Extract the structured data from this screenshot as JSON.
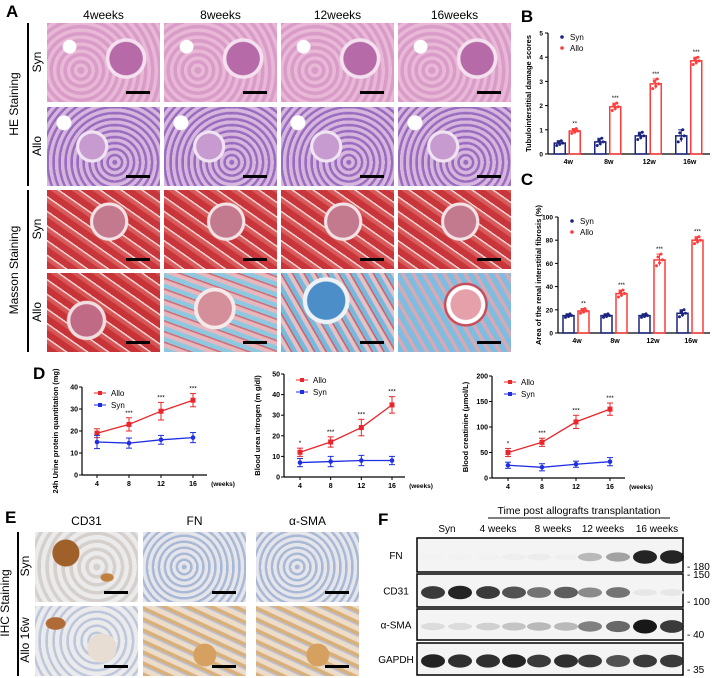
{
  "panelA": {
    "label": "A",
    "columns": [
      "4weeks",
      "8weeks",
      "12weeks",
      "16weeks"
    ],
    "groups": [
      {
        "label": "HE Staining",
        "rows": [
          "Syn",
          "Allo"
        ]
      },
      {
        "label": "Masson Staining",
        "rows": [
          "Syn",
          "Allo"
        ]
      }
    ]
  },
  "panelD_label": "D",
  "panelE": {
    "label": "E",
    "columns": [
      "CD31",
      "FN",
      "α-SMA"
    ],
    "group": "IHC Staining",
    "rows": [
      "Syn",
      "Allo 16w"
    ]
  },
  "panelF": {
    "label": "F",
    "title": "Time post allografts transplantation",
    "columns": [
      "Syn",
      "4 weeks",
      "8 weeks",
      "12 weeks",
      "16 weeks"
    ],
    "blots": [
      {
        "name": "FN",
        "marker": "- 180",
        "intensity": [
          0.05,
          0.05,
          0.05,
          0.07,
          0.08,
          0.06,
          0.3,
          0.4,
          0.95,
          0.95
        ]
      },
      {
        "name": "CD31",
        "marker": "- 100",
        "marker_top": "- 150",
        "intensity": [
          0.85,
          0.95,
          0.85,
          0.75,
          0.6,
          0.7,
          0.5,
          0.6,
          0.1,
          0.1
        ]
      },
      {
        "name": "α-SMA",
        "marker": "- 40",
        "intensity": [
          0.15,
          0.15,
          0.2,
          0.25,
          0.3,
          0.3,
          0.55,
          0.65,
          1.0,
          0.85
        ]
      },
      {
        "name": "GAPDH",
        "marker": "- 35",
        "intensity": [
          0.95,
          0.9,
          0.9,
          0.95,
          0.85,
          0.9,
          0.85,
          0.75,
          0.85,
          0.85
        ]
      }
    ]
  },
  "colors": {
    "syn": "#1a237e",
    "allo": "#ff3b3b",
    "syn_line": "#1f2ee0",
    "allo_line": "#e8262b"
  },
  "chart_data": [
    {
      "panel": "B",
      "type": "bar",
      "categories": [
        "4w",
        "8w",
        "12w",
        "16w"
      ],
      "ylabel": "Tubulointerstitial damage scores",
      "ylim": [
        0,
        5
      ],
      "yticks": [
        0,
        1,
        2,
        3,
        4,
        5
      ],
      "legend": "top-left",
      "series": [
        {
          "name": "Syn",
          "values": [
            0.45,
            0.5,
            0.75,
            0.75
          ],
          "err": [
            0.1,
            0.15,
            0.15,
            0.25
          ]
        },
        {
          "name": "Allo",
          "values": [
            0.95,
            1.95,
            2.9,
            3.85
          ],
          "err": [
            0.1,
            0.15,
            0.2,
            0.15
          ]
        }
      ],
      "significance": [
        "**",
        "***",
        "***",
        "***"
      ]
    },
    {
      "panel": "C",
      "type": "bar",
      "categories": [
        "4w",
        "8w",
        "12w",
        "16w"
      ],
      "ylabel": "Area of the renal interstitial fibrosis (%)",
      "ylim": [
        0,
        100
      ],
      "yticks": [
        0,
        20,
        40,
        60,
        80,
        100
      ],
      "legend": "top-left",
      "series": [
        {
          "name": "Syn",
          "values": [
            15,
            15,
            15,
            17
          ],
          "err": [
            1.5,
            1.5,
            1.5,
            3
          ]
        },
        {
          "name": "Allo",
          "values": [
            19,
            34,
            63,
            80
          ],
          "err": [
            2,
            3,
            5,
            3
          ]
        }
      ],
      "significance": [
        "**",
        "***",
        "***",
        "***"
      ]
    },
    {
      "panel": "D1",
      "type": "line",
      "x": [
        4,
        8,
        12,
        16
      ],
      "xlabel": "(weeks)",
      "ylabel": "24h Urine protein quantitation (mg)",
      "ylim": [
        0,
        40
      ],
      "yticks": [
        0,
        10,
        20,
        30,
        40
      ],
      "legend": "top-left",
      "series": [
        {
          "name": "Allo",
          "values": [
            19,
            23,
            29,
            34
          ],
          "err": [
            2,
            3,
            4,
            3
          ]
        },
        {
          "name": "Syn",
          "values": [
            15,
            14.5,
            16,
            17
          ],
          "err": [
            3,
            2.3,
            2,
            2.3
          ]
        }
      ],
      "significance": [
        "",
        "***",
        "***",
        "***"
      ]
    },
    {
      "panel": "D2",
      "type": "line",
      "x": [
        4,
        8,
        12,
        16
      ],
      "xlabel": "(weeks)",
      "ylabel": "Blood urea nitrogen (m g/dl)",
      "ylim": [
        0,
        50
      ],
      "yticks": [
        0,
        10,
        20,
        30,
        40,
        50
      ],
      "legend": "top-left",
      "series": [
        {
          "name": "Allo",
          "values": [
            12,
            17,
            24,
            35
          ],
          "err": [
            2,
            2.5,
            4,
            4
          ]
        },
        {
          "name": "Syn",
          "values": [
            7,
            7.5,
            8,
            8
          ],
          "err": [
            2,
            2.5,
            2.5,
            2
          ]
        }
      ],
      "significance": [
        "*",
        "***",
        "***",
        "***"
      ]
    },
    {
      "panel": "D3",
      "type": "line",
      "x": [
        4,
        8,
        12,
        16
      ],
      "xlabel": "(weeks)",
      "ylabel": "Blood creatinine (μmol/L)",
      "ylim": [
        0,
        200
      ],
      "yticks": [
        0,
        50,
        100,
        150,
        200
      ],
      "legend": "top-left",
      "series": [
        {
          "name": "Allo",
          "values": [
            50,
            70,
            110,
            135
          ],
          "err": [
            8,
            8,
            13,
            12
          ]
        },
        {
          "name": "Syn",
          "values": [
            25,
            21,
            27,
            32
          ],
          "err": [
            6,
            7,
            6,
            8
          ]
        }
      ],
      "significance": [
        "*",
        "***",
        "***",
        "***"
      ]
    }
  ]
}
